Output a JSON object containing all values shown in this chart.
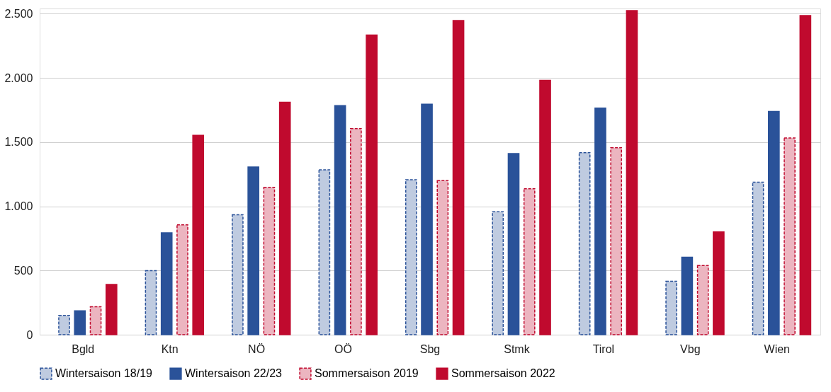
{
  "chart_data": {
    "type": "bar",
    "categories": [
      "Bgld",
      "Ktn",
      "NÖ",
      "OÖ",
      "Sbg",
      "Stmk",
      "Tirol",
      "Vbg",
      "Wien"
    ],
    "series": [
      {
        "name": "Wintersaison 18/19",
        "color": "#2a5299",
        "line_style": "dashed",
        "values": [
          150,
          498,
          934,
          1284,
          1207,
          958,
          1418,
          416,
          1188
        ]
      },
      {
        "name": "Wintersaison 22/23",
        "color": "#2a5299",
        "values": [
          186,
          793,
          1306,
          1784,
          1795,
          1411,
          1764,
          603,
          1738
        ]
      },
      {
        "name": "Sommersaison 2019",
        "color": "#c00a2e",
        "line_style": "dashed",
        "values": [
          218,
          855,
          1147,
          1605,
          1200,
          1137,
          1456,
          538,
          1532
        ]
      },
      {
        "name": "Sommersaison 2022",
        "color": "#c00a2e",
        "values": [
          391,
          1553,
          1810,
          2333,
          2447,
          1981,
          2523,
          800,
          2485
        ]
      }
    ],
    "ylim": [
      0,
      2540
    ],
    "yticks": [
      0,
      {
        "value": 500,
        "label": "500"
      },
      {
        "value": 1000,
        "label": "1.000"
      },
      {
        "value": 1500,
        "label": "1.500"
      },
      {
        "value": 2000,
        "label": "2.000"
      },
      {
        "value": 2500,
        "label": "2.500"
      }
    ],
    "grid": "y",
    "legend": "bottom"
  }
}
